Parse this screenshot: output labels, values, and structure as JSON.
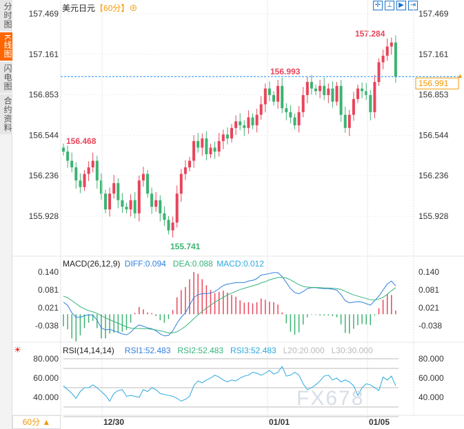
{
  "sidebar": {
    "tabs": [
      {
        "label": "分时图",
        "active": false
      },
      {
        "label": "K线图",
        "active": true
      },
      {
        "label": "闪电图",
        "active": false
      },
      {
        "label": "合约资料",
        "active": false
      }
    ]
  },
  "header": {
    "symbol": "美元日元",
    "period": "【60分】",
    "tools": [
      "crosshair-icon",
      "measure-icon",
      "play-icon",
      "jump-end-icon"
    ]
  },
  "colors": {
    "up": "#e8445a",
    "down": "#3cb371",
    "diff": "#2f7fe0",
    "dea": "#34b37a",
    "rsi": "#29a8e0",
    "accent": "#f39800"
  },
  "chart_data": [
    {
      "type": "candlestick",
      "yticks": [
        "157.469",
        "157.161",
        "156.853",
        "156.544",
        "156.236",
        "155.928"
      ],
      "ylim": [
        155.928,
        157.469
      ],
      "annotations": {
        "high": "157.284",
        "low": "155.741",
        "open_mark": "156.468",
        "mid_high": "156.993",
        "last_price": "156.991"
      },
      "xticks": [
        "12/30",
        "01/01",
        "01/05"
      ],
      "close": [
        156.42,
        156.35,
        156.3,
        156.2,
        156.15,
        156.25,
        156.3,
        156.35,
        156.2,
        156.1,
        155.98,
        156.1,
        156.18,
        156.05,
        156.0,
        155.98,
        156.05,
        155.95,
        156.2,
        156.25,
        156.1,
        156.0,
        156.05,
        155.95,
        155.9,
        155.82,
        155.88,
        156.1,
        156.25,
        156.3,
        156.35,
        156.5,
        156.45,
        156.52,
        156.4,
        156.45,
        156.42,
        156.5,
        156.55,
        156.52,
        156.6,
        156.65,
        156.62,
        156.6,
        156.68,
        156.62,
        156.7,
        156.78,
        156.9,
        156.85,
        156.8,
        156.92,
        156.75,
        156.72,
        156.68,
        156.62,
        156.72,
        156.85,
        156.95,
        156.9,
        156.88,
        156.92,
        156.85,
        156.9,
        156.8,
        156.92,
        156.7,
        156.6,
        156.7,
        156.82,
        156.9,
        156.88,
        156.85,
        156.72,
        156.95,
        157.1,
        157.15,
        157.22,
        157.25,
        156.99
      ]
    },
    {
      "type": "macd",
      "label": "MACD(26,12,9)",
      "diff_label": "DIFF:0.094",
      "dea_label": "DEA:0.088",
      "macd_label": "MACD:0.012",
      "yticks": [
        "0.140",
        "0.081",
        "0.021",
        "-0.038"
      ],
      "ylim": [
        -0.038,
        0.14
      ],
      "diff": [
        0.04,
        0.03,
        0.005,
        -0.01,
        -0.01,
        -0.005,
        -0.002,
        -0.003,
        -0.02,
        -0.045,
        -0.052,
        -0.05,
        -0.055,
        -0.06,
        -0.065,
        -0.068,
        -0.06,
        -0.045,
        -0.035,
        -0.04,
        -0.045,
        -0.048,
        -0.055,
        -0.065,
        -0.072,
        -0.07,
        -0.055,
        -0.03,
        -0.01,
        0.005,
        0.03,
        0.055,
        0.065,
        0.068,
        0.068,
        0.07,
        0.075,
        0.085,
        0.095,
        0.1,
        0.102,
        0.105,
        0.105,
        0.105,
        0.11,
        0.112,
        0.118,
        0.13,
        0.132,
        0.135,
        0.138,
        0.138,
        0.125,
        0.105,
        0.085,
        0.072,
        0.068,
        0.075,
        0.085,
        0.088,
        0.088,
        0.086,
        0.085,
        0.085,
        0.083,
        0.08,
        0.065,
        0.045,
        0.038,
        0.04,
        0.042,
        0.04,
        0.035,
        0.03,
        0.045,
        0.06,
        0.08,
        0.1,
        0.11,
        0.094
      ],
      "dea": [
        0.06,
        0.055,
        0.045,
        0.035,
        0.025,
        0.018,
        0.012,
        0.008,
        0.003,
        -0.005,
        -0.012,
        -0.018,
        -0.024,
        -0.03,
        -0.036,
        -0.042,
        -0.046,
        -0.047,
        -0.047,
        -0.048,
        -0.048,
        -0.05,
        -0.052,
        -0.055,
        -0.058,
        -0.062,
        -0.062,
        -0.058,
        -0.05,
        -0.04,
        -0.028,
        -0.015,
        -0.002,
        0.01,
        0.02,
        0.03,
        0.04,
        0.048,
        0.056,
        0.064,
        0.07,
        0.076,
        0.082,
        0.086,
        0.09,
        0.094,
        0.098,
        0.104,
        0.108,
        0.114,
        0.118,
        0.122,
        0.122,
        0.12,
        0.114,
        0.106,
        0.098,
        0.092,
        0.09,
        0.089,
        0.089,
        0.088,
        0.087,
        0.087,
        0.086,
        0.085,
        0.082,
        0.076,
        0.07,
        0.064,
        0.06,
        0.056,
        0.052,
        0.048,
        0.047,
        0.05,
        0.056,
        0.066,
        0.078,
        0.088
      ]
    },
    {
      "type": "line",
      "label": "RSI(14,14,14)",
      "legend": [
        "RSI1:52.483",
        "RSI2:52.483",
        "RSI3:52.483",
        "L20:20.000",
        "L30:30.000"
      ],
      "yticks": [
        "80.000",
        "60.000",
        "40.000"
      ],
      "ylim": [
        40,
        80
      ],
      "rsi": [
        52,
        48,
        44,
        39,
        46,
        50,
        50,
        53,
        50,
        46,
        42,
        36,
        44,
        47,
        48,
        41,
        42,
        41,
        40,
        48,
        46,
        50,
        48,
        44,
        43,
        42,
        41,
        39,
        36,
        38,
        41,
        52,
        57,
        55,
        58,
        60,
        63,
        61,
        58,
        56,
        58,
        57,
        60,
        62,
        63,
        66,
        65,
        63,
        65,
        68,
        64,
        66,
        72,
        62,
        63,
        66,
        63,
        54,
        48,
        50,
        53,
        57,
        62,
        63,
        58,
        60,
        56,
        58,
        56,
        52,
        42,
        50,
        54,
        53,
        50,
        47,
        61,
        58,
        62,
        52
      ]
    }
  ],
  "footer": {
    "period": "60分 ▲"
  },
  "watermark": "FX678"
}
